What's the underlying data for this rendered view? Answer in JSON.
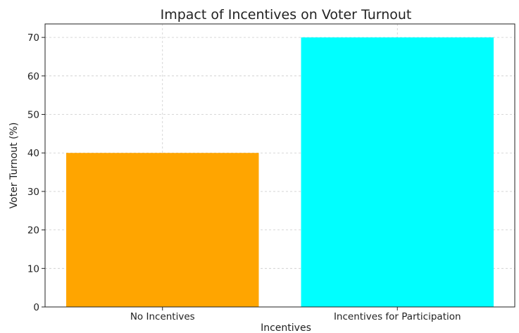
{
  "chart_data": {
    "type": "bar",
    "title": "Impact of Incentives on Voter Turnout",
    "xlabel": "Incentives",
    "ylabel": "Voter Turnout (%)",
    "categories": [
      "No Incentives",
      "Incentives for Participation"
    ],
    "values": [
      40,
      70
    ],
    "colors": [
      "#ffa500",
      "#00ffff"
    ],
    "ylim": [
      0,
      73.5
    ],
    "yticks": [
      0,
      10,
      20,
      30,
      40,
      50,
      60,
      70
    ],
    "grid": true,
    "legend": "none"
  }
}
